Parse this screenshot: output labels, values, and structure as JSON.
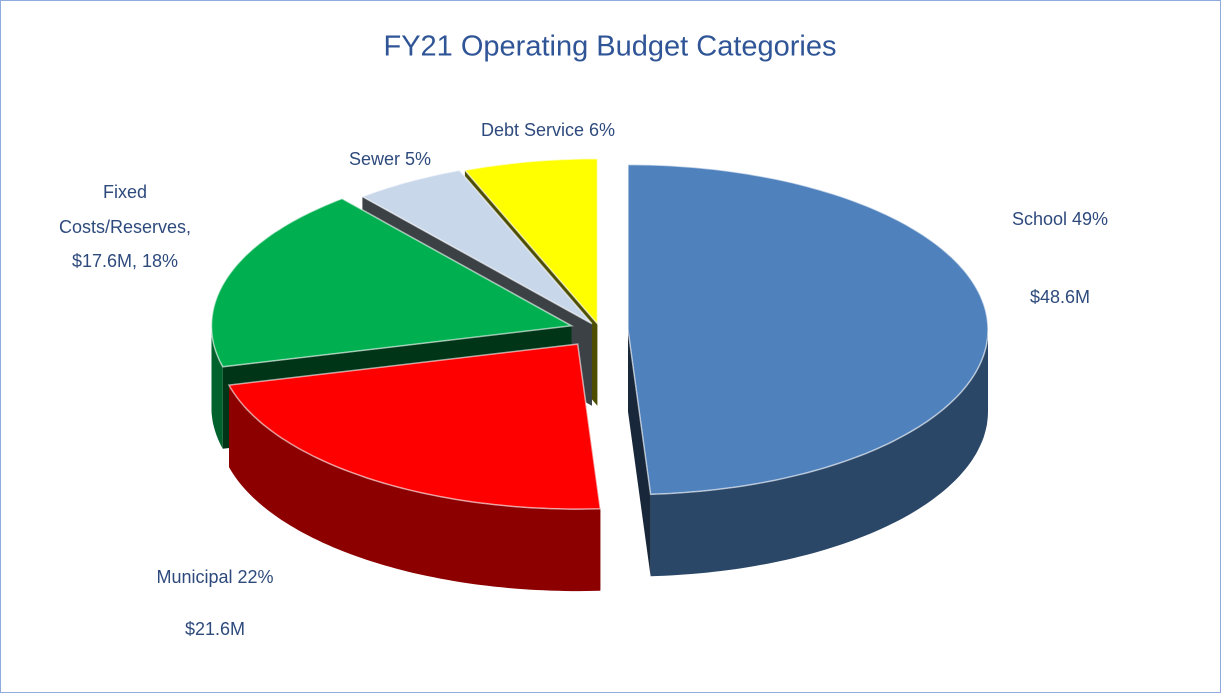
{
  "chart_data": {
    "type": "pie",
    "title": "FY21 Operating Budget Categories",
    "values": [
      49,
      22,
      18,
      5,
      6
    ],
    "value_labels": [
      [
        "School 49%",
        "$48.6M"
      ],
      [
        "Municipal 22%",
        "$21.6M"
      ],
      [
        "Fixed",
        "Costs/Reserves,",
        "$17.6M, 18%"
      ],
      [
        "Sewer 5%"
      ],
      [
        "Debt Service 6%"
      ]
    ],
    "colors": [
      "#4f81bd",
      "#ff0000",
      "#00b050",
      "#c9d7ea",
      "#ffff00"
    ],
    "three_d": true,
    "exploded": true
  }
}
